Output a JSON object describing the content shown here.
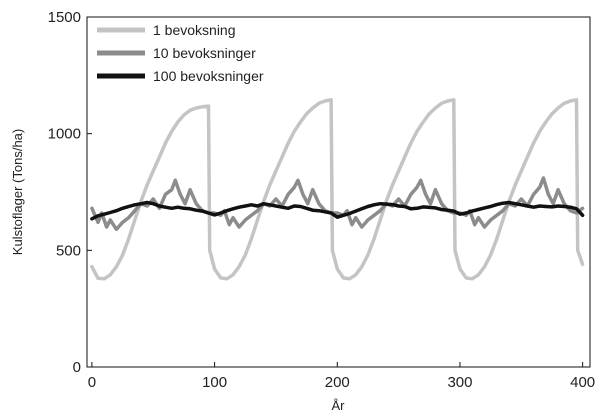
{
  "chart_data": {
    "type": "line",
    "title": "",
    "xlabel": "År",
    "ylabel": "Kulstoflager (Tons/ha)",
    "xlim": [
      -4,
      406
    ],
    "ylim": [
      0,
      1500
    ],
    "xticks": [
      0,
      100,
      200,
      300,
      400
    ],
    "yticks": [
      0,
      500,
      1000,
      1500
    ],
    "xtick_labels": [
      "0",
      "100",
      "200",
      "300",
      "400"
    ],
    "ytick_labels": [
      "0",
      "500",
      "1000",
      "1500"
    ],
    "grid": false,
    "legend_position": "top-left",
    "series": [
      {
        "name": "1 bevoksning",
        "color": "#c4c4c4",
        "x": [
          0,
          5,
          10,
          15,
          20,
          25,
          30,
          35,
          40,
          45,
          50,
          55,
          60,
          65,
          70,
          75,
          80,
          85,
          90,
          95,
          96,
          100,
          105,
          110,
          115,
          120,
          125,
          130,
          135,
          140,
          145,
          150,
          155,
          160,
          165,
          170,
          175,
          180,
          185,
          190,
          195,
          196,
          200,
          205,
          210,
          215,
          220,
          225,
          230,
          235,
          240,
          245,
          250,
          255,
          260,
          265,
          270,
          275,
          280,
          285,
          290,
          295,
          296,
          300,
          305,
          310,
          315,
          320,
          325,
          330,
          335,
          340,
          345,
          350,
          355,
          360,
          365,
          370,
          375,
          380,
          385,
          390,
          395,
          396,
          400
        ],
        "values": [
          430,
          380,
          378,
          395,
          430,
          480,
          550,
          630,
          710,
          780,
          840,
          900,
          960,
          1010,
          1050,
          1080,
          1100,
          1110,
          1115,
          1118,
          500,
          420,
          382,
          378,
          395,
          430,
          480,
          550,
          630,
          710,
          780,
          840,
          900,
          960,
          1010,
          1050,
          1085,
          1110,
          1130,
          1140,
          1145,
          500,
          420,
          382,
          378,
          395,
          430,
          480,
          550,
          630,
          710,
          780,
          840,
          900,
          960,
          1010,
          1050,
          1085,
          1110,
          1130,
          1140,
          1145,
          500,
          420,
          382,
          378,
          395,
          430,
          480,
          550,
          630,
          710,
          780,
          840,
          900,
          960,
          1010,
          1050,
          1085,
          1110,
          1130,
          1140,
          1145,
          500,
          440
        ]
      },
      {
        "name": "10 bevoksninger",
        "color": "#8c8c8c",
        "x": [
          0,
          5,
          8,
          12,
          15,
          20,
          25,
          30,
          35,
          40,
          45,
          50,
          55,
          60,
          65,
          68,
          72,
          76,
          80,
          85,
          90,
          95,
          100,
          105,
          108,
          112,
          115,
          120,
          125,
          130,
          135,
          140,
          145,
          150,
          155,
          160,
          165,
          168,
          172,
          176,
          180,
          185,
          190,
          195,
          200,
          205,
          208,
          212,
          215,
          220,
          225,
          230,
          235,
          240,
          245,
          250,
          255,
          260,
          265,
          268,
          272,
          276,
          280,
          285,
          290,
          295,
          300,
          305,
          308,
          312,
          315,
          320,
          325,
          330,
          335,
          340,
          345,
          350,
          355,
          360,
          365,
          368,
          372,
          376,
          380,
          385,
          390,
          395,
          400
        ],
        "values": [
          680,
          620,
          660,
          600,
          630,
          590,
          620,
          640,
          670,
          700,
          690,
          720,
          680,
          740,
          760,
          800,
          740,
          700,
          760,
          700,
          670,
          660,
          660,
          650,
          670,
          610,
          640,
          600,
          630,
          650,
          670,
          700,
          690,
          720,
          690,
          740,
          770,
          800,
          740,
          700,
          760,
          700,
          670,
          660,
          660,
          650,
          670,
          610,
          640,
          600,
          630,
          650,
          670,
          700,
          690,
          720,
          690,
          740,
          770,
          800,
          740,
          700,
          760,
          700,
          670,
          660,
          660,
          650,
          670,
          610,
          640,
          600,
          630,
          650,
          670,
          700,
          690,
          720,
          690,
          740,
          770,
          810,
          740,
          700,
          760,
          700,
          670,
          660,
          680
        ]
      },
      {
        "name": "100 bevoksninger",
        "color": "#111111",
        "x": [
          0,
          5,
          10,
          15,
          20,
          25,
          30,
          35,
          40,
          45,
          50,
          55,
          60,
          65,
          70,
          75,
          80,
          85,
          90,
          95,
          100,
          105,
          110,
          115,
          120,
          125,
          130,
          135,
          140,
          145,
          150,
          155,
          160,
          165,
          170,
          175,
          180,
          185,
          190,
          195,
          200,
          205,
          210,
          215,
          220,
          225,
          230,
          235,
          240,
          245,
          250,
          255,
          260,
          265,
          270,
          275,
          280,
          285,
          290,
          295,
          300,
          305,
          310,
          315,
          320,
          325,
          330,
          335,
          340,
          345,
          350,
          355,
          360,
          365,
          370,
          375,
          380,
          385,
          390,
          395,
          400
        ],
        "values": [
          635,
          648,
          655,
          662,
          670,
          680,
          688,
          695,
          700,
          705,
          700,
          690,
          685,
          680,
          685,
          680,
          678,
          672,
          668,
          660,
          652,
          660,
          670,
          678,
          685,
          690,
          695,
          690,
          700,
          695,
          690,
          685,
          680,
          690,
          688,
          680,
          672,
          670,
          665,
          660,
          642,
          650,
          658,
          668,
          678,
          688,
          695,
          700,
          698,
          696,
          690,
          688,
          678,
          680,
          686,
          684,
          682,
          675,
          672,
          668,
          655,
          660,
          668,
          675,
          682,
          688,
          696,
          702,
          705,
          700,
          695,
          690,
          685,
          690,
          688,
          686,
          690,
          688,
          685,
          678,
          650
        ]
      }
    ]
  }
}
